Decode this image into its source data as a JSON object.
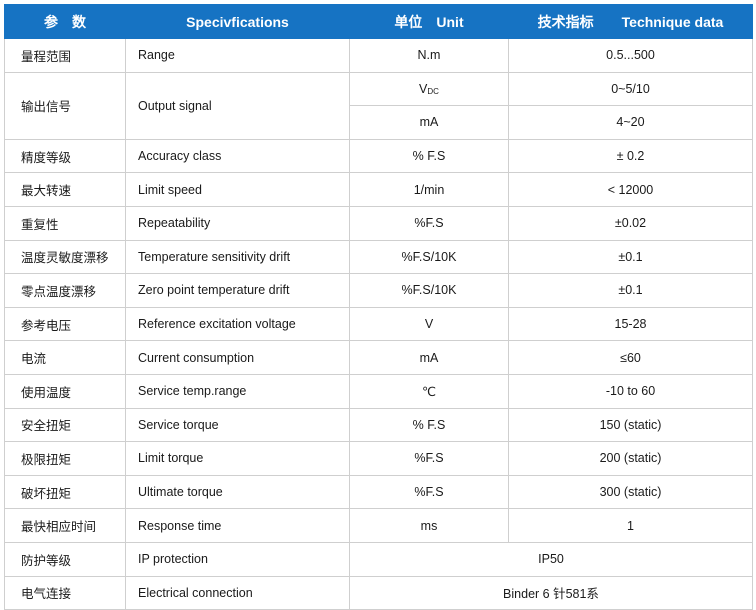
{
  "header": {
    "param": "参　数",
    "spec": "Specivfications",
    "unit": "单位　Unit",
    "tech_zh": "技术指标",
    "tech_en": "Technique data"
  },
  "rows": [
    {
      "zh": "量程范围",
      "en": "Range",
      "unit": "N.m",
      "value": "0.5...500"
    },
    {
      "zh": "输出信号",
      "en": "Output signal",
      "unit_main": "V",
      "unit_sub": "DC",
      "value": "0~5/10",
      "unit2": "mA",
      "value2": "4~20"
    },
    {
      "zh": "精度等级",
      "en": "Accuracy class",
      "unit": "% F.S",
      "value": "± 0.2"
    },
    {
      "zh": "最大转速",
      "en": "Limit speed",
      "unit": "1/min",
      "value": "< 12000"
    },
    {
      "zh": "重复性",
      "en": "Repeatability",
      "unit": "%F.S",
      "value": "±0.02"
    },
    {
      "zh": "温度灵敏度漂移",
      "en": "Temperature sensitivity drift",
      "unit": "%F.S/10K",
      "value": "±0.1"
    },
    {
      "zh": "零点温度漂移",
      "en": "Zero point temperature drift",
      "unit": "%F.S/10K",
      "value": "±0.1"
    },
    {
      "zh": "参考电压",
      "en": "Reference excitation voltage",
      "unit": "V",
      "value": "15-28"
    },
    {
      "zh": "电流",
      "en": "Current consumption",
      "unit": "mA",
      "value": "≤60"
    },
    {
      "zh": "使用温度",
      "en": "Service temp.range",
      "unit": "℃",
      "value": "-10 to 60"
    },
    {
      "zh": "安全扭矩",
      "en": "Service torque",
      "unit": "% F.S",
      "value": "150 (static)"
    },
    {
      "zh": "极限扭矩",
      "en": "Limit torque",
      "unit": "%F.S",
      "value": "200 (static)"
    },
    {
      "zh": "破坏扭矩",
      "en": "Ultimate torque",
      "unit": "%F.S",
      "value": "300 (static)"
    },
    {
      "zh": "最快相应时间",
      "en": "Response time",
      "unit": "ms",
      "value": "1"
    },
    {
      "zh": "防护等级",
      "en": "IP protection",
      "merged": "IP50"
    },
    {
      "zh": "电气连接",
      "en": "Electrical connection",
      "merged": "Binder 6 针581系"
    }
  ]
}
